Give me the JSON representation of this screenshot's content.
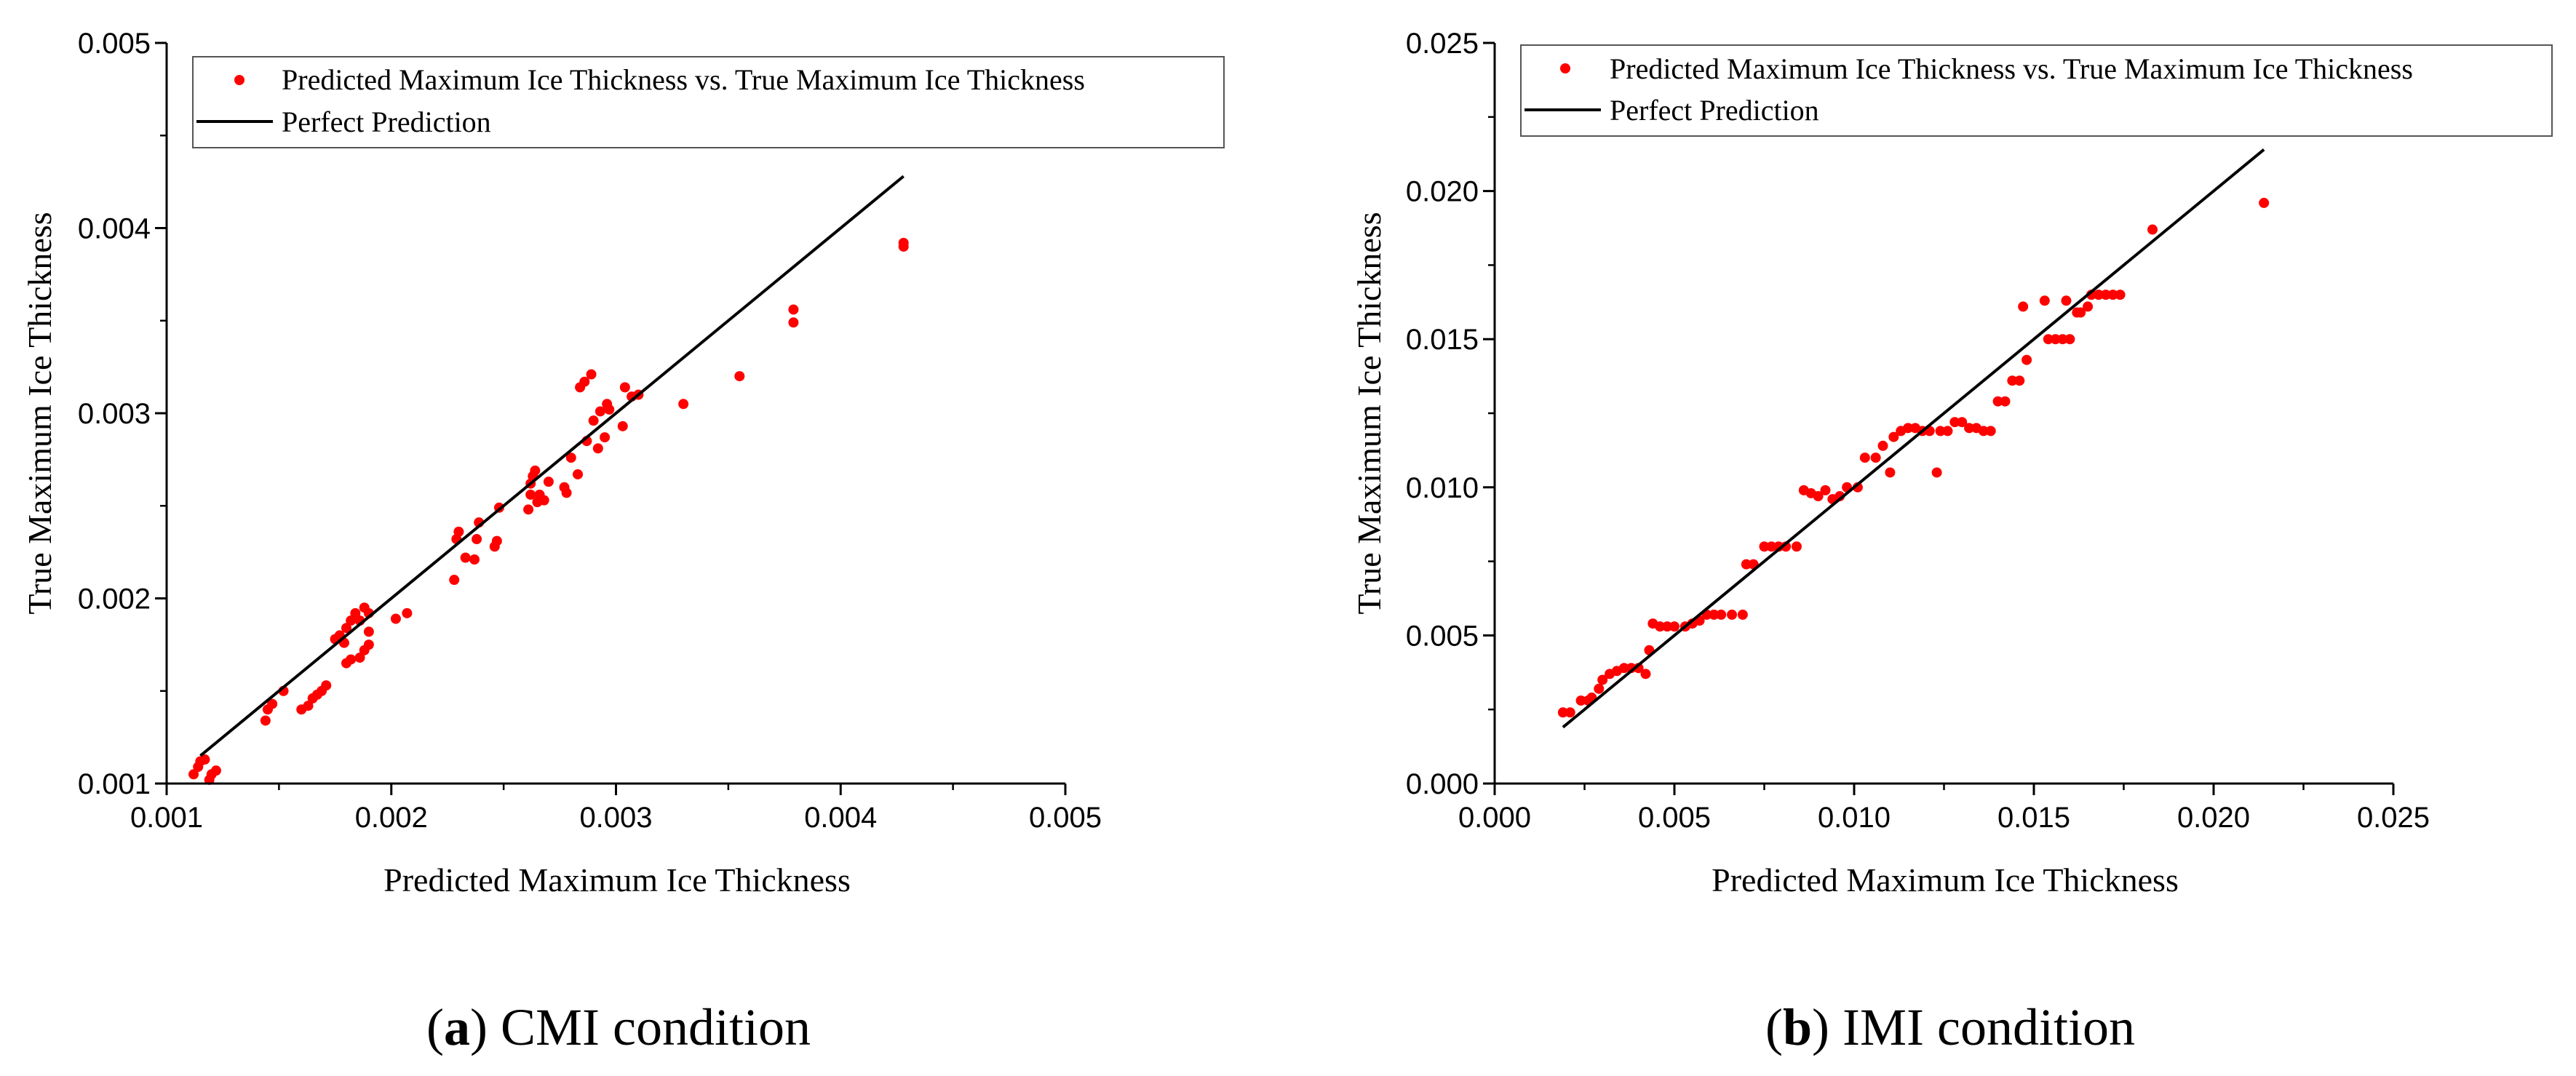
{
  "chart_data": [
    {
      "type": "scatter",
      "panel_label": "a",
      "caption": "CMI condition",
      "xlabel": "Predicted Maximum Ice Thickness",
      "ylabel": "True Maximum Ice Thickness",
      "xlim": [
        0.001,
        0.005
      ],
      "ylim": [
        0.001,
        0.005
      ],
      "xticks": [
        "0.001",
        "0.002",
        "0.003",
        "0.004",
        "0.005"
      ],
      "yticks": [
        "0.001",
        "0.002",
        "0.003",
        "0.004",
        "0.005"
      ],
      "legend_position": "top-right",
      "series": [
        {
          "name": "Predicted Maximum Ice Thickness vs. True Maximum Ice Thickness",
          "kind": "scatter",
          "color": "#ff0000",
          "points": [
            [
              0.00112,
              0.00105
            ],
            [
              0.00114,
              0.00109
            ],
            [
              0.00115,
              0.00112
            ],
            [
              0.00117,
              0.00113
            ],
            [
              0.00119,
              0.00102
            ],
            [
              0.0012,
              0.00105
            ],
            [
              0.00122,
              0.00107
            ],
            [
              0.00144,
              0.00134
            ],
            [
              0.00145,
              0.0014
            ],
            [
              0.00147,
              0.00143
            ],
            [
              0.00152,
              0.0015
            ],
            [
              0.0016,
              0.0014
            ],
            [
              0.00163,
              0.00142
            ],
            [
              0.00165,
              0.00146
            ],
            [
              0.00167,
              0.00148
            ],
            [
              0.00169,
              0.0015
            ],
            [
              0.00171,
              0.00153
            ],
            [
              0.00175,
              0.00178
            ],
            [
              0.00177,
              0.0018
            ],
            [
              0.00179,
              0.00176
            ],
            [
              0.0018,
              0.00184
            ],
            [
              0.00182,
              0.00188
            ],
            [
              0.00184,
              0.00192
            ],
            [
              0.00186,
              0.00188
            ],
            [
              0.00188,
              0.00195
            ],
            [
              0.0019,
              0.00192
            ],
            [
              0.0018,
              0.00165
            ],
            [
              0.00182,
              0.00167
            ],
            [
              0.00186,
              0.00168
            ],
            [
              0.00188,
              0.00172
            ],
            [
              0.0019,
              0.00175
            ],
            [
              0.0019,
              0.00182
            ],
            [
              0.00202,
              0.00189
            ],
            [
              0.00207,
              0.00192
            ],
            [
              0.00228,
              0.0021
            ],
            [
              0.00229,
              0.00232
            ],
            [
              0.0023,
              0.00236
            ],
            [
              0.00233,
              0.00222
            ],
            [
              0.00237,
              0.00221
            ],
            [
              0.00238,
              0.00232
            ],
            [
              0.00239,
              0.00241
            ],
            [
              0.00246,
              0.00228
            ],
            [
              0.00247,
              0.00231
            ],
            [
              0.00248,
              0.00249
            ],
            [
              0.00261,
              0.00248
            ],
            [
              0.00262,
              0.00256
            ],
            [
              0.00262,
              0.00262
            ],
            [
              0.00263,
              0.00266
            ],
            [
              0.00264,
              0.00269
            ],
            [
              0.00265,
              0.00252
            ],
            [
              0.00266,
              0.00256
            ],
            [
              0.00268,
              0.00253
            ],
            [
              0.0027,
              0.00263
            ],
            [
              0.00277,
              0.0026
            ],
            [
              0.00278,
              0.00257
            ],
            [
              0.0028,
              0.00276
            ],
            [
              0.00283,
              0.00267
            ],
            [
              0.00284,
              0.00314
            ],
            [
              0.00286,
              0.00317
            ],
            [
              0.00287,
              0.00285
            ],
            [
              0.00289,
              0.00321
            ],
            [
              0.0029,
              0.00296
            ],
            [
              0.00292,
              0.00281
            ],
            [
              0.00293,
              0.00301
            ],
            [
              0.00295,
              0.00287
            ],
            [
              0.00296,
              0.00305
            ],
            [
              0.00297,
              0.00302
            ],
            [
              0.00303,
              0.00293
            ],
            [
              0.00304,
              0.00314
            ],
            [
              0.00307,
              0.00309
            ],
            [
              0.0031,
              0.0031
            ],
            [
              0.0033,
              0.00305
            ],
            [
              0.00355,
              0.0032
            ],
            [
              0.00379,
              0.00349
            ],
            [
              0.00379,
              0.00356
            ],
            [
              0.00428,
              0.0039
            ],
            [
              0.00428,
              0.00392
            ]
          ]
        },
        {
          "name": "Perfect Prediction",
          "kind": "line",
          "color": "#000000",
          "x": [
            0.00115,
            0.00428
          ],
          "y": [
            0.00115,
            0.00428
          ]
        }
      ]
    },
    {
      "type": "scatter",
      "panel_label": "b",
      "caption": "IMI condition",
      "xlabel": "Predicted Maximum Ice Thickness",
      "ylabel": "True Maximum Ice Thickness",
      "xlim": [
        0.0,
        0.025
      ],
      "ylim": [
        0.0,
        0.025
      ],
      "xticks": [
        "0.000",
        "0.005",
        "0.010",
        "0.015",
        "0.020",
        "0.025"
      ],
      "yticks": [
        "0.000",
        "0.005",
        "0.010",
        "0.015",
        "0.020",
        "0.025"
      ],
      "legend_position": "top-right",
      "series": [
        {
          "name": "Predicted Maximum Ice Thickness vs. True Maximum Ice Thickness",
          "kind": "scatter",
          "color": "#ff0000",
          "points": [
            [
              0.0019,
              0.0024
            ],
            [
              0.0021,
              0.0024
            ],
            [
              0.0024,
              0.0028
            ],
            [
              0.0026,
              0.0028
            ],
            [
              0.0027,
              0.0029
            ],
            [
              0.0029,
              0.0032
            ],
            [
              0.003,
              0.0035
            ],
            [
              0.0032,
              0.0037
            ],
            [
              0.0034,
              0.0038
            ],
            [
              0.0036,
              0.0039
            ],
            [
              0.0038,
              0.0039
            ],
            [
              0.004,
              0.0039
            ],
            [
              0.0042,
              0.0037
            ],
            [
              0.0043,
              0.0045
            ],
            [
              0.0044,
              0.0054
            ],
            [
              0.0046,
              0.0053
            ],
            [
              0.0048,
              0.0053
            ],
            [
              0.005,
              0.0053
            ],
            [
              0.0053,
              0.0053
            ],
            [
              0.0055,
              0.0054
            ],
            [
              0.0057,
              0.0055
            ],
            [
              0.0059,
              0.0057
            ],
            [
              0.0061,
              0.0057
            ],
            [
              0.0063,
              0.0057
            ],
            [
              0.0066,
              0.0057
            ],
            [
              0.0069,
              0.0057
            ],
            [
              0.007,
              0.0074
            ],
            [
              0.0072,
              0.0074
            ],
            [
              0.0075,
              0.008
            ],
            [
              0.0077,
              0.008
            ],
            [
              0.0079,
              0.008
            ],
            [
              0.0081,
              0.008
            ],
            [
              0.0084,
              0.008
            ],
            [
              0.0086,
              0.0099
            ],
            [
              0.0088,
              0.0098
            ],
            [
              0.009,
              0.0097
            ],
            [
              0.0092,
              0.0099
            ],
            [
              0.0094,
              0.0096
            ],
            [
              0.0096,
              0.0097
            ],
            [
              0.0098,
              0.01
            ],
            [
              0.0101,
              0.01
            ],
            [
              0.0103,
              0.011
            ],
            [
              0.0106,
              0.011
            ],
            [
              0.0108,
              0.0114
            ],
            [
              0.011,
              0.0105
            ],
            [
              0.0111,
              0.0117
            ],
            [
              0.0113,
              0.0119
            ],
            [
              0.0115,
              0.012
            ],
            [
              0.0117,
              0.012
            ],
            [
              0.0119,
              0.0119
            ],
            [
              0.0121,
              0.0119
            ],
            [
              0.0123,
              0.0105
            ],
            [
              0.0124,
              0.0119
            ],
            [
              0.0126,
              0.0119
            ],
            [
              0.0128,
              0.0122
            ],
            [
              0.013,
              0.0122
            ],
            [
              0.0132,
              0.012
            ],
            [
              0.0134,
              0.012
            ],
            [
              0.0136,
              0.0119
            ],
            [
              0.0138,
              0.0119
            ],
            [
              0.014,
              0.0129
            ],
            [
              0.0142,
              0.0129
            ],
            [
              0.0144,
              0.0136
            ],
            [
              0.0146,
              0.0136
            ],
            [
              0.0147,
              0.0161
            ],
            [
              0.0148,
              0.0143
            ],
            [
              0.0153,
              0.0163
            ],
            [
              0.0154,
              0.015
            ],
            [
              0.0156,
              0.015
            ],
            [
              0.0158,
              0.015
            ],
            [
              0.0159,
              0.0163
            ],
            [
              0.016,
              0.015
            ],
            [
              0.0162,
              0.0159
            ],
            [
              0.0163,
              0.0159
            ],
            [
              0.0165,
              0.0161
            ],
            [
              0.0166,
              0.0165
            ],
            [
              0.0168,
              0.0165
            ],
            [
              0.017,
              0.0165
            ],
            [
              0.0172,
              0.0165
            ],
            [
              0.0174,
              0.0165
            ],
            [
              0.0183,
              0.0187
            ],
            [
              0.0214,
              0.0196
            ]
          ]
        },
        {
          "name": "Perfect Prediction",
          "kind": "line",
          "color": "#000000",
          "x": [
            0.0019,
            0.0214
          ],
          "y": [
            0.0019,
            0.0214
          ]
        }
      ]
    }
  ]
}
